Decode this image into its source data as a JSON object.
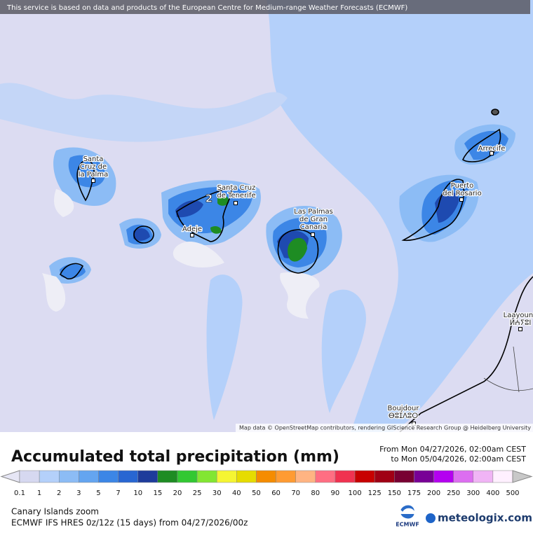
{
  "banner": "This service is based on data and products of the European Centre for Medium-range Weather Forecasts (ECMWF)",
  "map": {
    "cities": [
      {
        "lines": [
          "Santa",
          "Cruz de",
          "la Palma"
        ]
      },
      {
        "lines": [
          "Santa Cruz",
          "de Tenerife"
        ]
      },
      {
        "lines": [
          "Adeje"
        ]
      },
      {
        "lines": [
          "Las Palmas",
          "de Gran",
          "Canaria"
        ]
      },
      {
        "lines": [
          "Puerto",
          "del Rosario"
        ]
      },
      {
        "lines": [
          "Arrecife"
        ]
      },
      {
        "lines": [
          "Laayoune",
          "ⵍⵄⵢⵓⵏ"
        ]
      },
      {
        "lines": [
          "Boujdour",
          "ⴱⵓⵊⴷⵓⵔ"
        ]
      }
    ],
    "marker": "2",
    "attribution": "Map data © OpenStreetMap contributors, rendering GIScience Research Group @ Heidelberg University"
  },
  "legend": {
    "title": "Accumulated total precipitation (mm)",
    "period": [
      "From Mon 04/27/2026, 02:00am CEST",
      "to Mon 05/04/2026, 02:00am CEST"
    ],
    "labels": [
      "0.1",
      "1",
      "2",
      "3",
      "5",
      "7",
      "10",
      "15",
      "20",
      "25",
      "30",
      "40",
      "50",
      "60",
      "70",
      "80",
      "90",
      "100",
      "125",
      "150",
      "175",
      "200",
      "250",
      "300",
      "400",
      "500"
    ],
    "colors": [
      "#d6d8f0",
      "#b4d0fa",
      "#8cbcf5",
      "#64a5f0",
      "#3c86e6",
      "#2866d2",
      "#1e3c9b",
      "#1e8c23",
      "#32c832",
      "#82e632",
      "#f5f532",
      "#e6dc00",
      "#f58c00",
      "#ff9b32",
      "#ffb482",
      "#ff6e82",
      "#f03250",
      "#c80000",
      "#a00014",
      "#780032",
      "#780096",
      "#b400f0",
      "#dc6ef0",
      "#f0b4f5",
      "#fff0ff"
    ],
    "under_color": "#e6e6f5",
    "over_color": "#c8c8c8"
  },
  "footer": {
    "region": "Canary Islands zoom",
    "model": "ECMWF IFS HRES 0z/12z (15 days) from  04/27/2026/00z",
    "ecmwf_logo": "ECMWF",
    "brand": "meteologix.com"
  }
}
